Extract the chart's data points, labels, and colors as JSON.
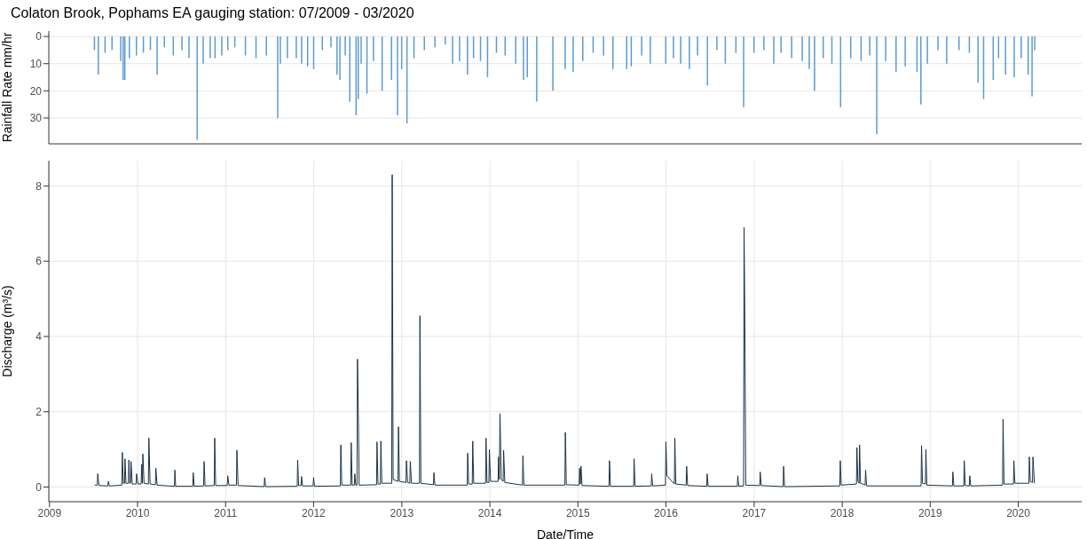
{
  "chart_data": [
    {
      "type": "bar",
      "title": "Colaton Brook, Pophams EA gauging station: 07/2009 - 03/2020",
      "ylabel": "Rainfall Rate mm/hr",
      "color": "#5b9bd1",
      "grid": true,
      "tick_labels": "y",
      "xlim": [
        "2008-12-29",
        "2020-09-20"
      ],
      "xticks": [
        "2009",
        "2010",
        "2011",
        "2012",
        "2013",
        "2014",
        "2015",
        "2016",
        "2017",
        "2018",
        "2019",
        "2020"
      ],
      "ylim": [
        39.5,
        -2
      ],
      "yticks": [
        0,
        10,
        20,
        30
      ],
      "x": [
        "2009-07-07",
        "2009-07-23",
        "2009-08-20",
        "2009-09-18",
        "2009-10-24",
        "2009-11-03",
        "2009-11-10",
        "2009-11-29",
        "2009-12-28",
        "2010-01-26",
        "2010-02-24",
        "2010-03-24",
        "2010-04-23",
        "2010-05-30",
        "2010-07-05",
        "2010-08-03",
        "2010-09-06",
        "2010-10-01",
        "2010-10-30",
        "2010-11-19",
        "2010-12-17",
        "2011-01-11",
        "2011-02-09",
        "2011-03-25",
        "2011-05-08",
        "2011-06-20",
        "2011-08-06",
        "2011-08-17",
        "2011-09-15",
        "2011-10-22",
        "2011-11-13",
        "2011-12-08",
        "2012-01-02",
        "2012-02-07",
        "2012-03-14",
        "2012-04-08",
        "2012-04-20",
        "2012-05-12",
        "2012-05-31",
        "2012-06-26",
        "2012-07-05",
        "2012-07-17",
        "2012-08-10",
        "2012-09-06",
        "2012-10-12",
        "2012-11-20",
        "2012-12-15",
        "2013-01-01",
        "2013-01-23",
        "2013-02-21",
        "2013-04-05",
        "2013-05-19",
        "2013-07-01",
        "2013-07-31",
        "2013-08-29",
        "2013-10-01",
        "2013-10-26",
        "2013-11-24",
        "2013-12-23",
        "2014-01-29",
        "2014-03-06",
        "2014-04-19",
        "2014-05-21",
        "2014-06-06",
        "2014-07-15",
        "2014-09-20",
        "2014-11-10",
        "2014-12-13",
        "2015-01-22",
        "2015-03-06",
        "2015-04-18",
        "2015-05-27",
        "2015-07-23",
        "2015-08-11",
        "2015-09-23",
        "2015-10-29",
        "2016-01-01",
        "2016-02-02",
        "2016-03-03",
        "2016-04-08",
        "2016-05-12",
        "2016-06-22",
        "2016-07-31",
        "2016-09-04",
        "2016-10-18",
        "2016-11-19",
        "2017-01-01",
        "2017-02-11",
        "2017-03-24",
        "2017-04-23",
        "2017-06-06",
        "2017-07-20",
        "2017-08-18",
        "2017-09-09",
        "2017-10-15",
        "2017-11-20",
        "2017-12-26",
        "2018-02-06",
        "2018-03-21",
        "2018-04-26",
        "2018-05-25",
        "2018-07-01",
        "2018-08-13",
        "2018-09-20",
        "2018-11-08",
        "2018-11-24",
        "2018-12-21",
        "2019-02-03",
        "2019-03-11",
        "2019-05-01",
        "2019-06-13",
        "2019-07-19",
        "2019-08-11",
        "2019-09-20",
        "2019-10-12",
        "2019-11-10",
        "2019-12-16",
        "2020-01-14",
        "2020-02-12",
        "2020-02-28",
        "2020-03-10"
      ],
      "values": [
        5,
        14,
        6,
        5,
        9,
        16,
        16,
        8,
        7,
        6,
        5,
        14,
        4,
        7,
        5,
        8,
        38,
        10,
        8,
        8,
        7,
        5,
        4,
        7,
        8,
        7,
        30,
        10,
        8,
        8,
        10,
        11,
        12,
        5,
        4,
        14,
        16,
        7,
        24,
        29,
        23,
        10,
        21,
        9,
        20,
        16,
        29,
        12,
        32,
        8,
        5,
        4,
        3,
        10,
        9,
        14,
        8,
        9,
        15,
        6,
        7,
        10,
        16,
        15,
        24,
        20,
        12,
        13,
        9,
        6,
        7,
        12,
        12,
        11,
        7,
        10,
        10,
        8,
        10,
        12,
        7,
        18,
        5,
        10,
        6,
        26,
        6,
        5,
        10,
        6,
        8,
        9,
        12,
        20,
        8,
        10,
        26,
        8,
        9,
        7,
        36,
        9,
        13,
        11,
        13,
        25,
        10,
        5,
        10,
        5,
        6,
        17,
        23,
        16,
        8,
        14,
        15,
        8,
        14,
        22,
        5
      ]
    },
    {
      "type": "line",
      "xlabel": "Date/Time",
      "ylabel": "Discharge (m³/s)",
      "color": "#1c3344",
      "grid": true,
      "marker": "none",
      "xlim": [
        "2008-12-29",
        "2020-09-20"
      ],
      "xticks": [
        "2009",
        "2010",
        "2011",
        "2012",
        "2013",
        "2014",
        "2015",
        "2016",
        "2017",
        "2018",
        "2019",
        "2020"
      ],
      "ylim": [
        -0.39,
        8.67
      ],
      "yticks": [
        0,
        2,
        4,
        6,
        8
      ],
      "x": [
        "2009-07-07",
        "2009-07-18",
        "2009-07-20",
        "2009-07-25",
        "2009-08-31",
        "2009-09-02",
        "2009-09-06",
        "2009-10-28",
        "2009-10-30",
        "2009-11-03",
        "2009-11-08",
        "2009-11-10",
        "2009-11-14",
        "2009-11-24",
        "2009-11-26",
        "2009-11-30",
        "2009-12-03",
        "2009-12-05",
        "2009-12-10",
        "2009-12-26",
        "2009-12-28",
        "2010-01-03",
        "2010-01-16",
        "2010-01-18",
        "2010-01-21",
        "2010-01-23",
        "2010-01-28",
        "2010-02-15",
        "2010-02-17",
        "2010-02-22",
        "2010-03-16",
        "2010-03-18",
        "2010-03-23",
        "2010-06-03",
        "2010-06-05",
        "2010-06-08",
        "2010-08-18",
        "2010-08-20",
        "2010-08-24",
        "2010-10-02",
        "2010-10-04",
        "2010-10-08",
        "2010-11-15",
        "2010-11-17",
        "2010-11-21",
        "2011-01-08",
        "2011-01-10",
        "2011-01-15",
        "2011-02-15",
        "2011-02-17",
        "2011-02-22",
        "2011-06-10",
        "2011-06-12",
        "2011-06-16",
        "2011-10-25",
        "2011-10-27",
        "2011-10-31",
        "2011-11-10",
        "2011-11-12",
        "2011-11-16",
        "2011-12-30",
        "2012-01-01",
        "2012-01-05",
        "2012-04-21",
        "2012-04-23",
        "2012-04-27",
        "2012-06-03",
        "2012-06-05",
        "2012-06-09",
        "2012-06-18",
        "2012-06-20",
        "2012-06-24",
        "2012-06-29",
        "2012-07-01",
        "2012-07-04",
        "2012-07-08",
        "2012-09-18",
        "2012-09-20",
        "2012-09-24",
        "2012-10-04",
        "2012-10-06",
        "2012-10-10",
        "2012-11-20",
        "2012-11-22",
        "2012-11-26",
        "2012-12-16",
        "2012-12-18",
        "2012-12-22",
        "2013-01-18",
        "2013-01-20",
        "2013-01-25",
        "2013-02-03",
        "2013-02-05",
        "2013-02-10",
        "2013-03-15",
        "2013-03-17",
        "2013-03-21",
        "2013-05-12",
        "2013-05-14",
        "2013-05-18",
        "2013-09-29",
        "2013-10-01",
        "2013-10-05",
        "2013-10-20",
        "2013-10-22",
        "2013-10-26",
        "2013-12-14",
        "2013-12-16",
        "2013-12-20",
        "2013-12-28",
        "2013-12-30",
        "2014-01-04",
        "2014-02-04",
        "2014-02-06",
        "2014-02-09",
        "2014-02-12",
        "2014-02-17",
        "2014-02-25",
        "2014-02-27",
        "2014-03-04",
        "2014-05-16",
        "2014-05-18",
        "2014-05-22",
        "2014-11-08",
        "2014-11-10",
        "2014-11-14",
        "2015-01-06",
        "2015-01-08",
        "2015-01-11",
        "2015-01-14",
        "2015-01-18",
        "2015-05-10",
        "2015-05-12",
        "2015-05-16",
        "2015-08-20",
        "2015-08-22",
        "2015-08-26",
        "2015-11-01",
        "2015-11-03",
        "2015-11-07",
        "2015-12-30",
        "2016-01-01",
        "2016-01-05",
        "2016-02-05",
        "2016-02-07",
        "2016-02-11",
        "2016-03-25",
        "2016-03-27",
        "2016-03-31",
        "2016-06-18",
        "2016-06-20",
        "2016-06-24",
        "2016-10-23",
        "2016-10-25",
        "2016-10-29",
        "2016-11-18",
        "2016-11-20",
        "2016-11-23",
        "2016-11-27",
        "2017-01-24",
        "2017-01-26",
        "2017-01-30",
        "2017-05-01",
        "2017-05-03",
        "2017-05-07",
        "2017-12-22",
        "2017-12-24",
        "2017-12-28",
        "2018-03-01",
        "2018-03-03",
        "2018-03-07",
        "2018-03-12",
        "2018-03-14",
        "2018-03-18",
        "2018-04-06",
        "2018-04-08",
        "2018-04-12",
        "2018-11-24",
        "2018-11-26",
        "2018-11-30",
        "2018-12-12",
        "2018-12-14",
        "2018-12-18",
        "2019-04-03",
        "2019-04-05",
        "2019-04-09",
        "2019-05-20",
        "2019-05-22",
        "2019-05-26",
        "2019-06-12",
        "2019-06-14",
        "2019-06-18",
        "2019-10-28",
        "2019-10-30",
        "2019-11-03",
        "2019-12-12",
        "2019-12-14",
        "2019-12-18",
        "2020-02-14",
        "2020-02-16",
        "2020-02-20",
        "2020-02-29",
        "2020-03-02",
        "2020-03-08"
      ],
      "values": [
        0.05,
        0.05,
        0.35,
        0.04,
        0.03,
        0.15,
        0.03,
        0.05,
        0.92,
        0.1,
        0.1,
        0.75,
        0.1,
        0.1,
        0.72,
        0.1,
        0.1,
        0.68,
        0.08,
        0.08,
        0.35,
        0.08,
        0.08,
        0.6,
        0.1,
        0.88,
        0.1,
        0.08,
        1.3,
        0.08,
        0.06,
        0.5,
        0.05,
        0.02,
        0.45,
        0.02,
        0.02,
        0.38,
        0.02,
        0.03,
        0.68,
        0.03,
        0.04,
        1.3,
        0.04,
        0.04,
        0.3,
        0.05,
        0.05,
        0.98,
        0.04,
        0.01,
        0.25,
        0.01,
        0.02,
        0.72,
        0.04,
        0.04,
        0.28,
        0.03,
        0.03,
        0.25,
        0.02,
        0.03,
        1.12,
        0.05,
        0.05,
        1.18,
        0.05,
        0.05,
        0.35,
        0.05,
        0.05,
        3.4,
        2.2,
        0.05,
        0.06,
        1.2,
        0.08,
        0.08,
        1.22,
        0.1,
        0.1,
        8.3,
        0.2,
        0.15,
        1.6,
        0.15,
        0.12,
        0.7,
        0.12,
        0.1,
        0.68,
        0.1,
        0.1,
        4.55,
        0.1,
        0.06,
        0.38,
        0.05,
        0.05,
        0.9,
        0.08,
        0.08,
        1.22,
        0.1,
        0.1,
        1.3,
        0.12,
        0.12,
        1.0,
        0.15,
        0.15,
        0.8,
        0.2,
        1.95,
        0.2,
        0.15,
        0.98,
        0.12,
        0.05,
        0.83,
        0.05,
        0.05,
        1.45,
        0.06,
        0.05,
        0.5,
        0.08,
        0.55,
        0.04,
        0.02,
        0.7,
        0.02,
        0.02,
        0.75,
        0.02,
        0.03,
        0.35,
        0.03,
        0.05,
        1.2,
        0.3,
        0.08,
        1.3,
        0.08,
        0.05,
        0.55,
        0.04,
        0.02,
        0.35,
        0.02,
        0.02,
        0.3,
        0.02,
        0.03,
        6.9,
        4.7,
        0.05,
        0.04,
        0.4,
        0.04,
        0.01,
        0.55,
        0.01,
        0.03,
        0.7,
        0.05,
        0.08,
        1.05,
        0.15,
        0.1,
        1.12,
        0.1,
        0.05,
        0.45,
        0.03,
        0.03,
        1.1,
        0.1,
        0.08,
        1.0,
        0.05,
        0.03,
        0.4,
        0.03,
        0.03,
        0.7,
        0.04,
        0.03,
        0.3,
        0.03,
        0.05,
        1.8,
        0.08,
        0.08,
        0.7,
        0.1,
        0.1,
        0.8,
        0.15,
        0.12,
        0.8,
        0.1
      ]
    }
  ]
}
